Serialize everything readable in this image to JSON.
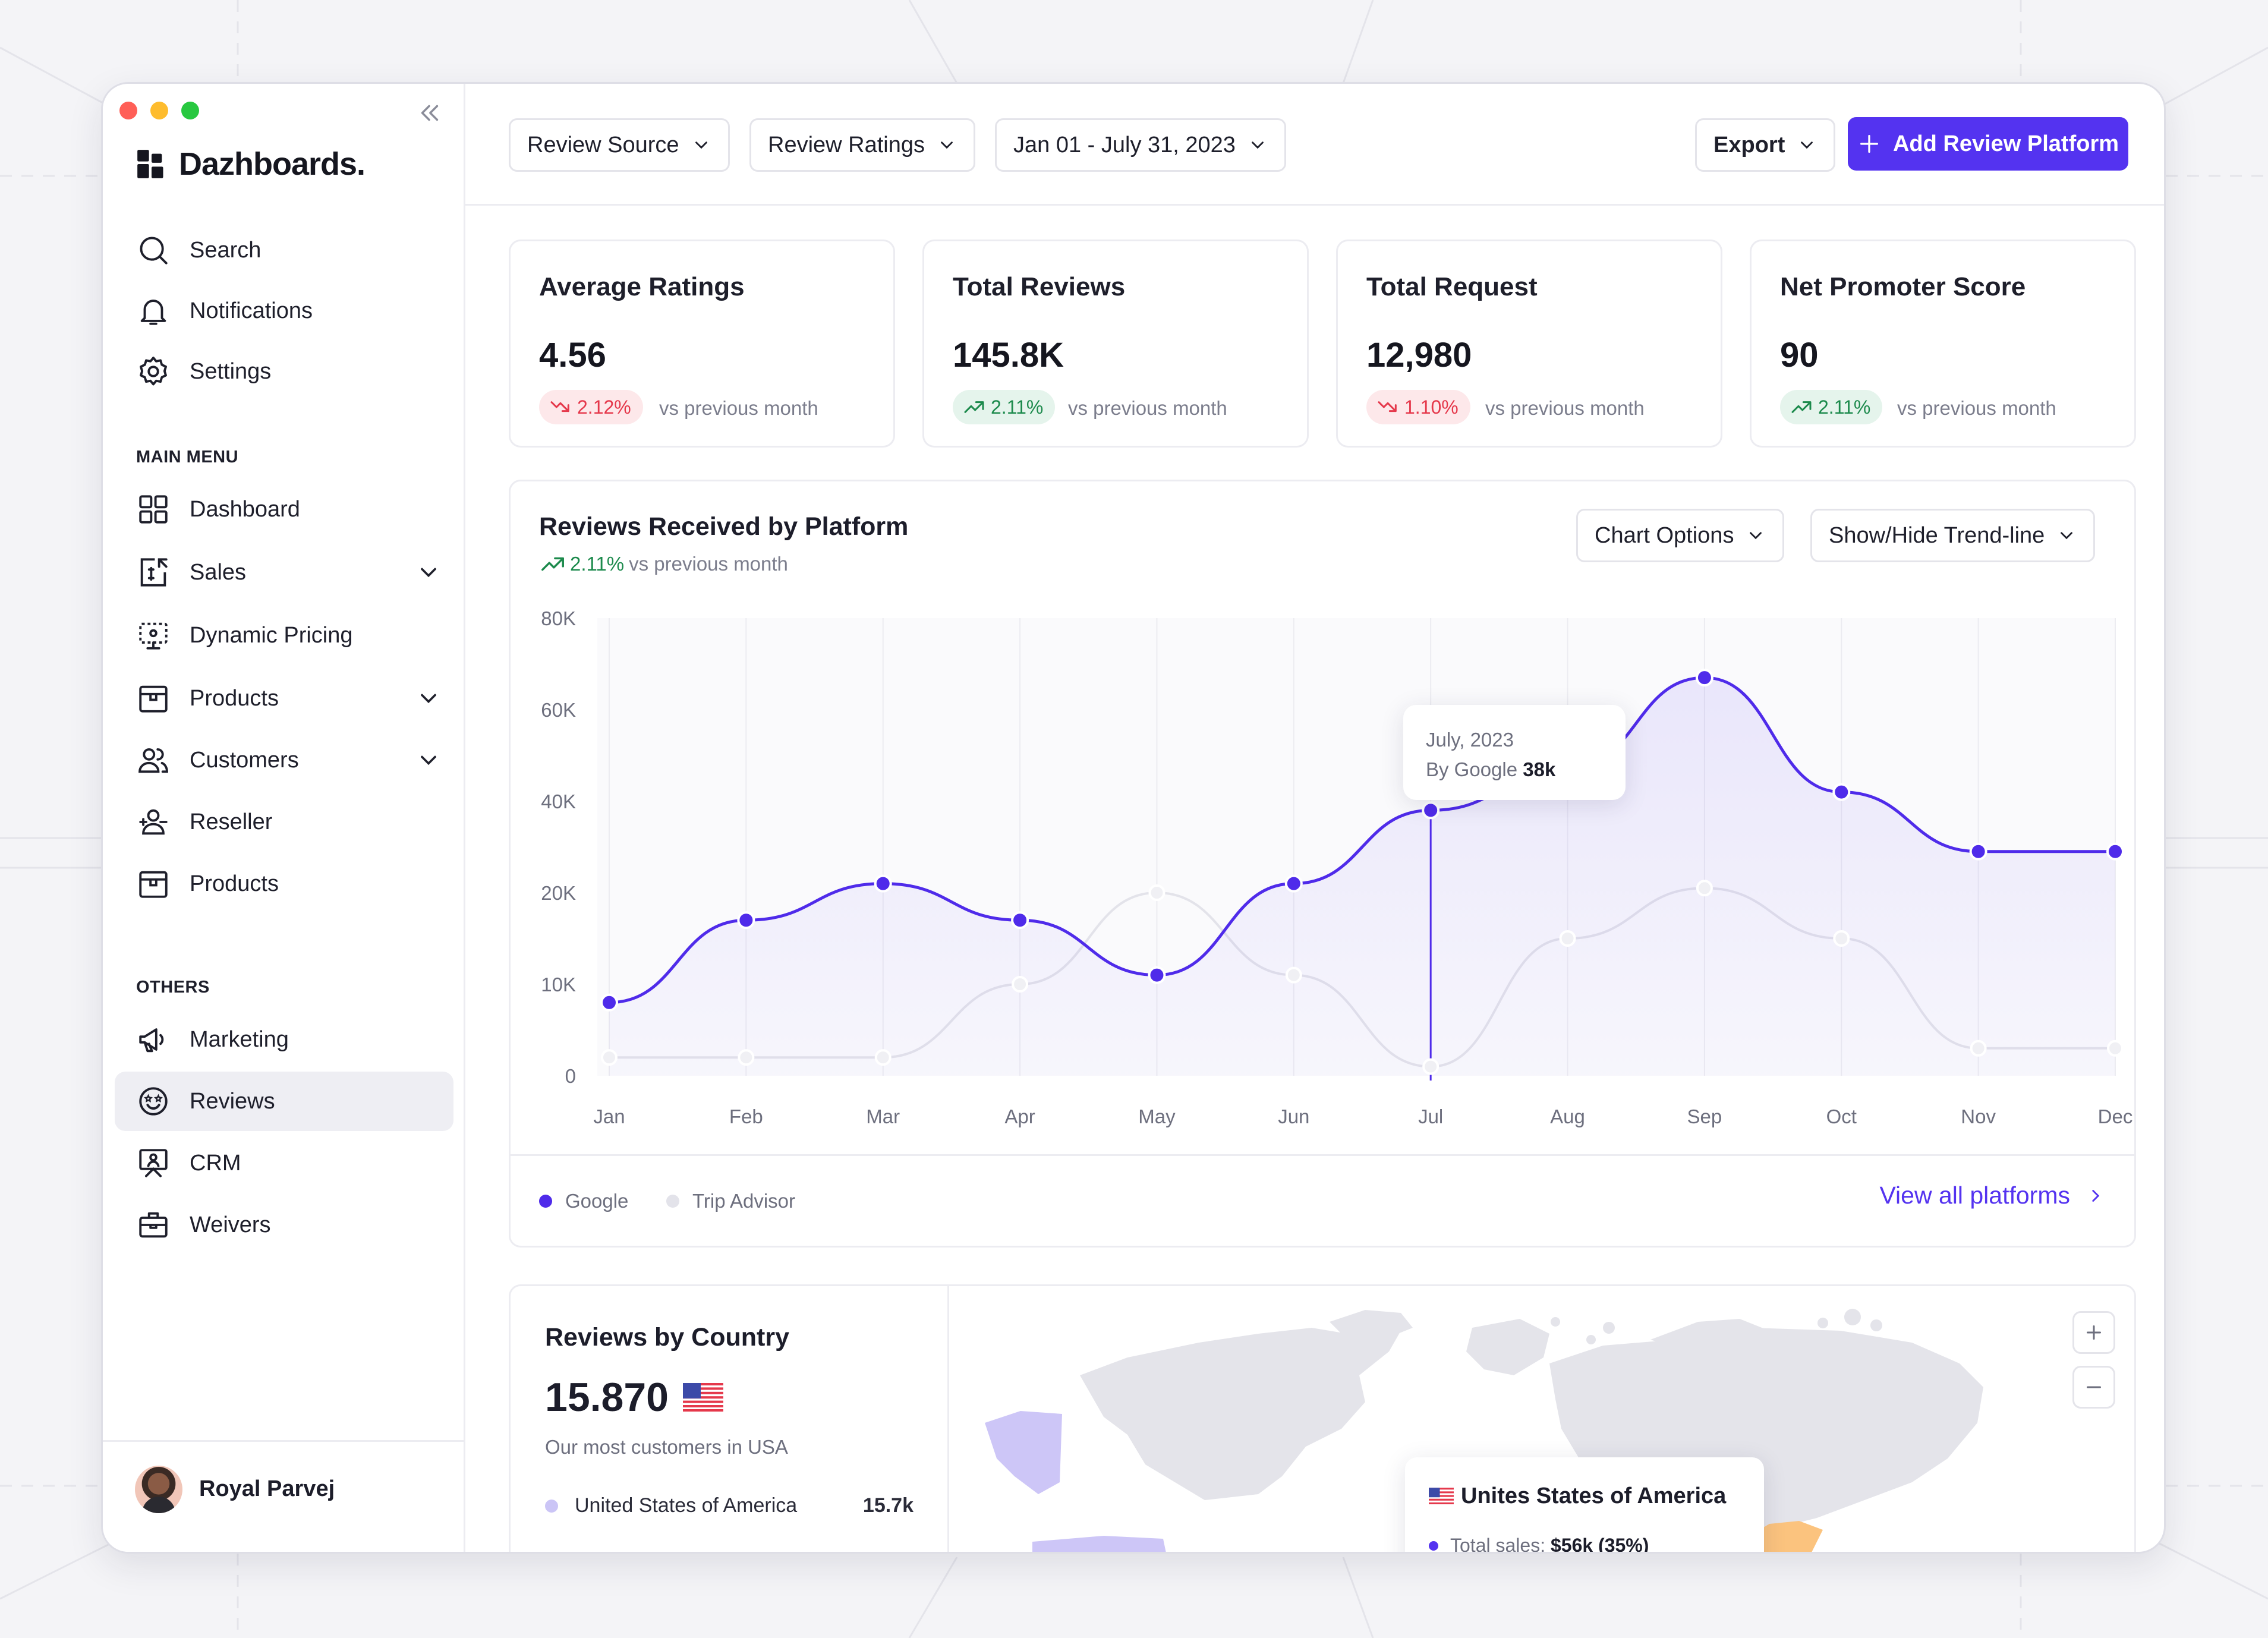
{
  "colors": {
    "accent": "#5433f0",
    "google_series": "#4f2bea",
    "trip_series": "#e3e3ea",
    "positive": "#1c8a4c",
    "negative": "#e5384b"
  },
  "app": {
    "brand": "Dazhboards."
  },
  "sidebar": {
    "top_items": [
      {
        "label": "Search",
        "icon": "search-icon"
      },
      {
        "label": "Notifications",
        "icon": "bell-icon"
      },
      {
        "label": "Settings",
        "icon": "gear-icon"
      }
    ],
    "main_menu_label": "MAIN MENU",
    "main_items": [
      {
        "label": "Dashboard",
        "icon": "grid-icon"
      },
      {
        "label": "Sales",
        "icon": "sales-icon",
        "expandable": true
      },
      {
        "label": "Dynamic Pricing",
        "icon": "pricing-icon"
      },
      {
        "label": "Products",
        "icon": "box-icon",
        "expandable": true
      },
      {
        "label": "Customers",
        "icon": "users-icon",
        "expandable": true
      },
      {
        "label": "Reseller",
        "icon": "reseller-icon"
      },
      {
        "label": "Products",
        "icon": "box-icon"
      }
    ],
    "others_label": "OTHERS",
    "other_items": [
      {
        "label": "Marketing",
        "icon": "megaphone-icon"
      },
      {
        "label": "Reviews",
        "icon": "smiley-icon",
        "active": true
      },
      {
        "label": "CRM",
        "icon": "crm-icon"
      },
      {
        "label": "Weivers",
        "icon": "briefcase-icon"
      }
    ],
    "user_name": "Royal Parvej"
  },
  "topbar": {
    "filters": [
      {
        "label": "Review Source"
      },
      {
        "label": "Review Ratings"
      },
      {
        "label": "Jan 01 - July 31, 2023"
      }
    ],
    "export_label": "Export",
    "add_platform_label": "Add Review Platform"
  },
  "stats": [
    {
      "title": "Average Ratings",
      "value": "4.56",
      "change": "2.12%",
      "direction": "down",
      "vs": "vs previous month"
    },
    {
      "title": "Total Reviews",
      "value": "145.8K",
      "change": "2.11%",
      "direction": "up",
      "vs": "vs previous month"
    },
    {
      "title": "Total Request",
      "value": "12,980",
      "change": "1.10%",
      "direction": "down",
      "vs": "vs previous month"
    },
    {
      "title": "Net Promoter Score",
      "value": "90",
      "change": "2.11%",
      "direction": "up",
      "vs": "vs previous month"
    }
  ],
  "reviews_chart": {
    "title": "Reviews Received by Platform",
    "change": "2.11%",
    "vs": "vs previous month",
    "chart_options_label": "Chart Options",
    "trend_label": "Show/Hide Trend-line",
    "tooltip": {
      "title": "July, 2023",
      "label": "By Google",
      "value": "38k"
    },
    "view_all_label": "View all platforms"
  },
  "chart_data": {
    "type": "line",
    "title": "Reviews Received by Platform",
    "categories": [
      "Jan",
      "Feb",
      "Mar",
      "Apr",
      "May",
      "Jun",
      "Jul",
      "Aug",
      "Sep",
      "Oct",
      "Nov",
      "Dec"
    ],
    "y_tick_labels": [
      "80K",
      "60K",
      "40K",
      "20K",
      "10K",
      "0"
    ],
    "y_tick_values": [
      80000,
      60000,
      40000,
      20000,
      10000,
      0
    ],
    "grid": true,
    "legend_position": "bottom-left",
    "series": [
      {
        "name": "Google",
        "color": "#4f2bea",
        "area": true,
        "values": [
          8000,
          17000,
          22000,
          17000,
          11000,
          22000,
          38000,
          47000,
          67000,
          42000,
          29000,
          29000
        ]
      },
      {
        "name": "Trip Advisor",
        "color": "#e3e3ea",
        "area": false,
        "values": [
          2000,
          2000,
          2000,
          10000,
          20000,
          11000,
          1000,
          15000,
          21000,
          15000,
          3000,
          3000
        ]
      }
    ],
    "highlight": {
      "category": "Jul",
      "series": "Google",
      "value": 38000
    }
  },
  "country_card": {
    "title": "Reviews by Country",
    "value": "15.870",
    "note": "Our most customers in USA",
    "rows": [
      {
        "country": "United States of America",
        "value": "15.7k"
      }
    ],
    "map_tooltip": {
      "country": "Unites States of America",
      "sales_label": "Total sales:",
      "sales_value": "$56k (35%)"
    }
  }
}
